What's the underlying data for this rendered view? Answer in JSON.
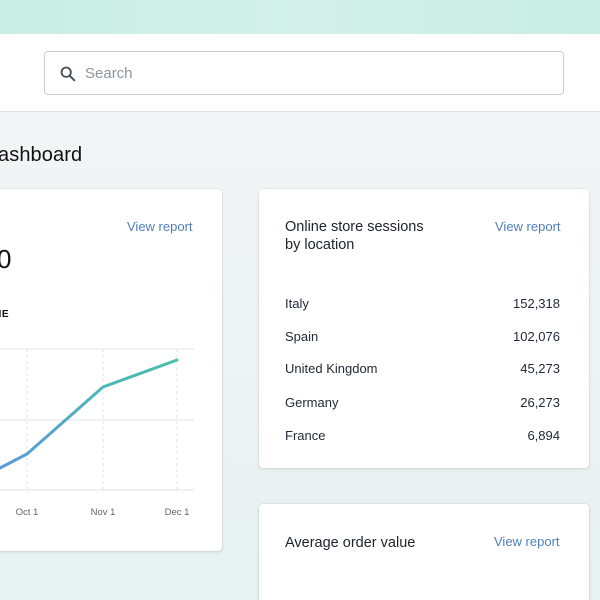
{
  "search": {
    "placeholder": "Search",
    "value": ""
  },
  "page": {
    "title_visible": "ashboard"
  },
  "sales_card": {
    "view_report": "View report",
    "big_number_visible": "0",
    "subhead_visible": "ME"
  },
  "chart_data": {
    "type": "line",
    "x_labels": [
      "Oct 1",
      "Nov 1",
      "Dec 1"
    ],
    "series_points_visible": [
      0.16,
      0.33,
      1.0,
      1.26
    ],
    "colors": {
      "start": "#5a9bdc",
      "end": "#47c1a8"
    }
  },
  "sessions_card": {
    "title_line1": "Online store sessions",
    "title_line2": "by location",
    "view_report": "View report",
    "rows": [
      {
        "name": "Italy",
        "value": "152,318"
      },
      {
        "name": "Spain",
        "value": "102,076"
      },
      {
        "name": "United Kingdom",
        "value": "45,273"
      },
      {
        "name": "Germany",
        "value": "26,273"
      },
      {
        "name": "France",
        "value": "6,894"
      }
    ]
  },
  "aov_card": {
    "title": "Average order value",
    "view_report": "View report"
  },
  "icons": {
    "search": "search-icon"
  }
}
